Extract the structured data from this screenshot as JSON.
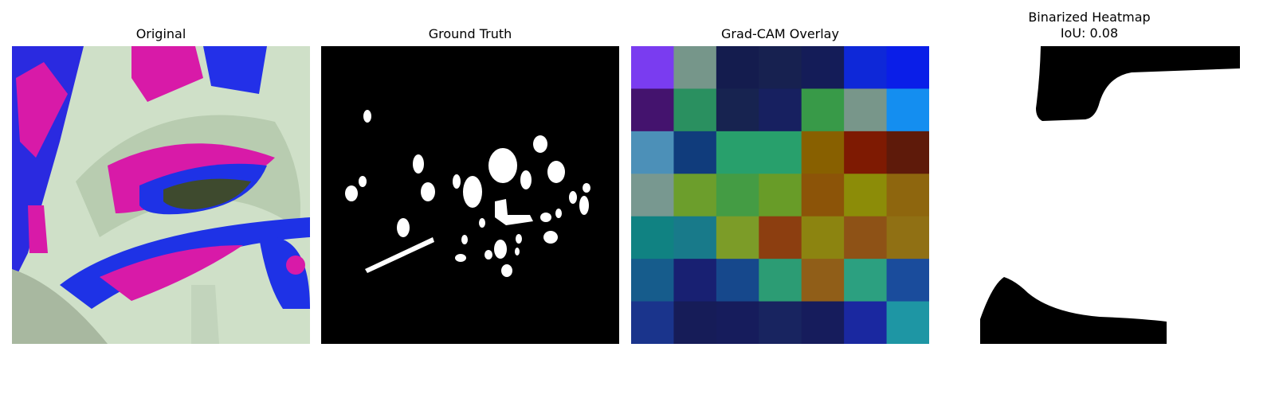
{
  "panels": {
    "original": {
      "title": "Original"
    },
    "ground_truth": {
      "title": "Ground Truth"
    },
    "gradcam": {
      "title": "Grad-CAM Overlay",
      "grid": [
        [
          "#7a3cf0",
          "#76968a",
          "#141c4e",
          "#172150",
          "#141c58",
          "#0e28d8",
          "#0a1ee8"
        ],
        [
          "#44136e",
          "#2a9060",
          "#172350",
          "#172060",
          "#389a48",
          "#78968a",
          "#148ef0"
        ],
        [
          "#4c90b8",
          "#103c7c",
          "#28a06c",
          "#28a06c",
          "#886000",
          "#7e1a02",
          "#5e1a0a"
        ],
        [
          "#789890",
          "#6c9e2c",
          "#449c44",
          "#689c28",
          "#8c5408",
          "#8c8c08",
          "#8e660e"
        ],
        [
          "#108282",
          "#187a8a",
          "#7c9c28",
          "#8c3e10",
          "#8c8410",
          "#8e5216",
          "#907014"
        ],
        [
          "#165c8c",
          "#182072",
          "#16488c",
          "#2c9c74",
          "#905e18",
          "#2ca080",
          "#1a4c9c"
        ],
        [
          "#1a348c",
          "#161c58",
          "#161c5c",
          "#182460",
          "#161c5c",
          "#1a28a0",
          "#1e96a4"
        ]
      ]
    },
    "binarized": {
      "title": "Binarized Heatmap\nIoU: 0.08"
    }
  }
}
